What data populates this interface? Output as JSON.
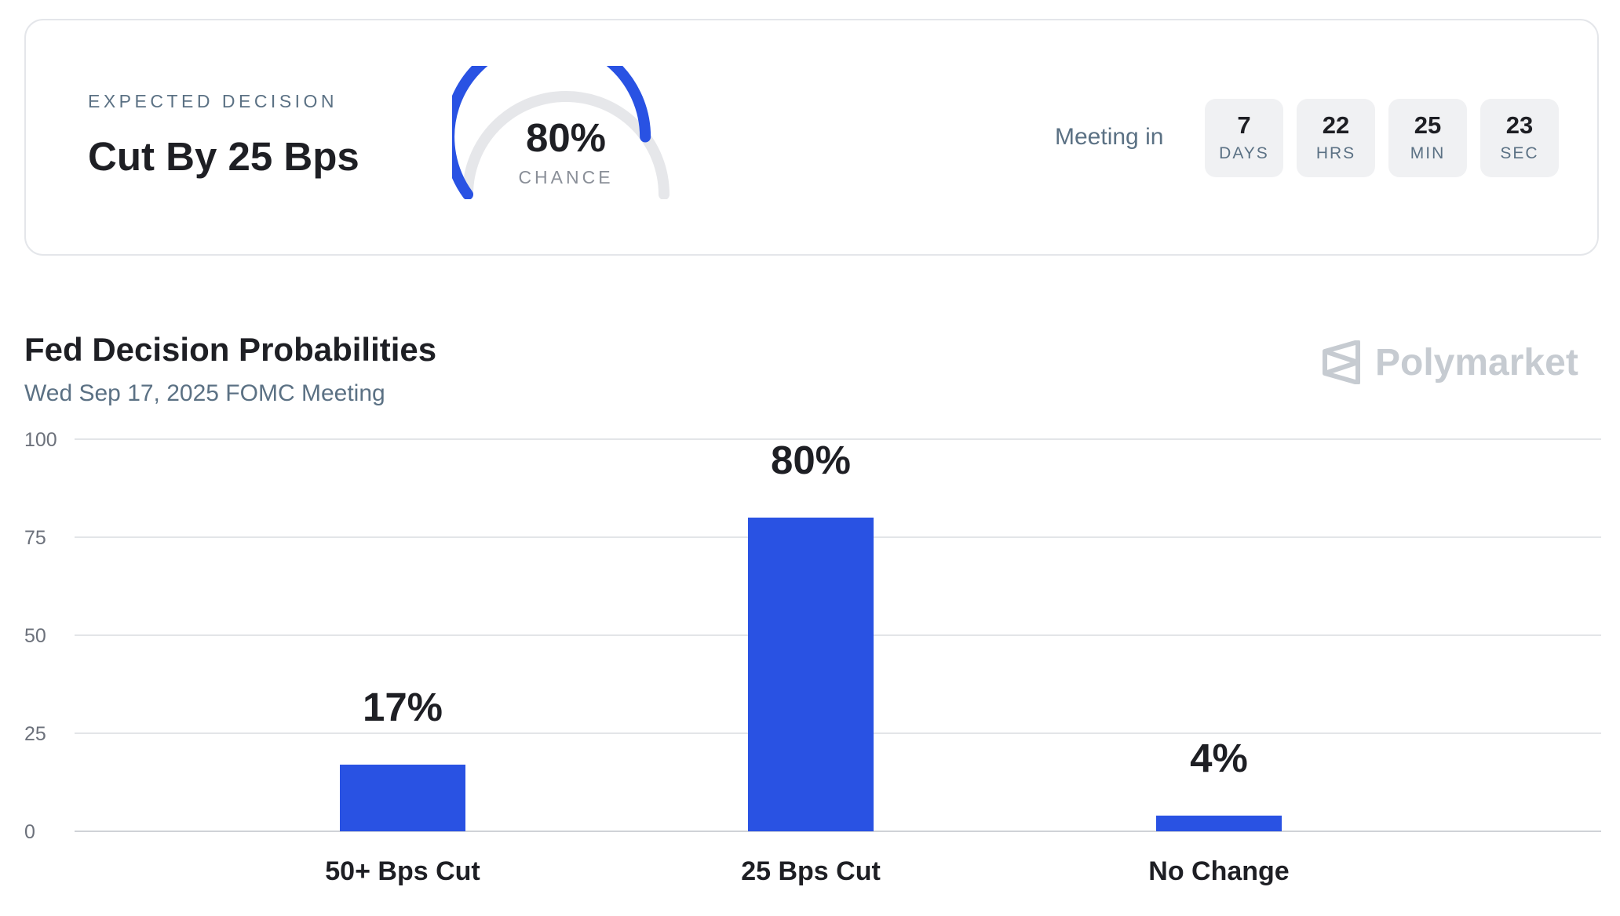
{
  "header": {
    "expected_label": "EXPECTED DECISION",
    "expected_title": "Cut By 25 Bps",
    "gauge": {
      "value": 80,
      "value_label": "80%",
      "caption": "CHANCE",
      "fill_color": "#2952e3",
      "track_color": "#e6e7ea"
    },
    "meeting_label": "Meeting in",
    "countdown": [
      {
        "value": "7",
        "unit": "DAYS"
      },
      {
        "value": "22",
        "unit": "HRS"
      },
      {
        "value": "25",
        "unit": "MIN"
      },
      {
        "value": "23",
        "unit": "SEC"
      }
    ]
  },
  "brand": {
    "name": "Polymarket",
    "icon": "polymarket-logo-icon"
  },
  "chart_data": {
    "type": "bar",
    "title": "Fed Decision Probabilities",
    "subtitle": "Wed Sep 17, 2025 FOMC Meeting",
    "categories": [
      "50+ Bps Cut",
      "25 Bps Cut",
      "No Change"
    ],
    "values": [
      17,
      80,
      4
    ],
    "value_labels": [
      "17%",
      "80%",
      "4%"
    ],
    "ylim": [
      0,
      100
    ],
    "yticks": [
      0,
      25,
      50,
      75,
      100
    ],
    "grid": true,
    "bar_color": "#2952e3",
    "xlabel": "",
    "ylabel": ""
  }
}
